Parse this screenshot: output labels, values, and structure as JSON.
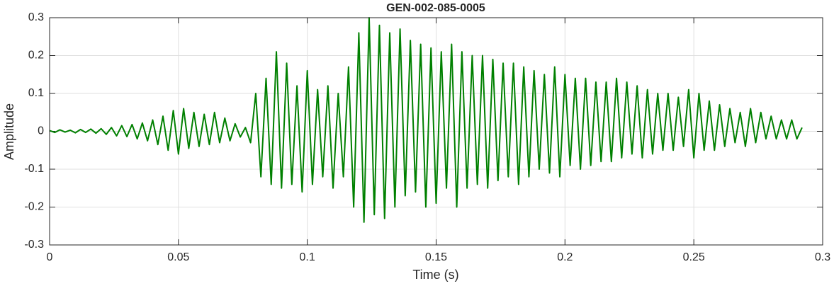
{
  "chart_data": {
    "type": "line",
    "title": "GEN-002-085-0005",
    "xlabel": "Time (s)",
    "ylabel": "Amplitude",
    "color": "#008000",
    "grid": true,
    "xlim": [
      0,
      0.3
    ],
    "xticks": [
      0,
      0.05,
      0.1,
      0.15,
      0.2,
      0.25,
      0.3
    ],
    "ylim": [
      -0.3,
      0.3
    ],
    "yticks": [
      -0.3,
      -0.2,
      -0.1,
      0,
      0.1,
      0.2,
      0.3
    ],
    "x": [
      0,
      0.002,
      0.004,
      0.006,
      0.008,
      0.01,
      0.012,
      0.014,
      0.016,
      0.018,
      0.02,
      0.022,
      0.024,
      0.026,
      0.028,
      0.03,
      0.032,
      0.034,
      0.036,
      0.038,
      0.04,
      0.042,
      0.044,
      0.046,
      0.048,
      0.05,
      0.052,
      0.054,
      0.056,
      0.058,
      0.06,
      0.062,
      0.064,
      0.066,
      0.068,
      0.07,
      0.072,
      0.074,
      0.076,
      0.078,
      0.08,
      0.082,
      0.084,
      0.086,
      0.088,
      0.09,
      0.092,
      0.094,
      0.096,
      0.098,
      0.1,
      0.102,
      0.104,
      0.106,
      0.108,
      0.11,
      0.112,
      0.114,
      0.116,
      0.118,
      0.12,
      0.122,
      0.124,
      0.126,
      0.128,
      0.13,
      0.132,
      0.134,
      0.136,
      0.138,
      0.14,
      0.142,
      0.144,
      0.146,
      0.148,
      0.15,
      0.152,
      0.154,
      0.156,
      0.158,
      0.16,
      0.162,
      0.164,
      0.166,
      0.168,
      0.17,
      0.172,
      0.174,
      0.176,
      0.178,
      0.18,
      0.182,
      0.184,
      0.186,
      0.188,
      0.19,
      0.192,
      0.194,
      0.196,
      0.198,
      0.2,
      0.202,
      0.204,
      0.206,
      0.208,
      0.21,
      0.212,
      0.214,
      0.216,
      0.218,
      0.22,
      0.222,
      0.224,
      0.226,
      0.228,
      0.23,
      0.232,
      0.234,
      0.236,
      0.238,
      0.24,
      0.242,
      0.244,
      0.246,
      0.248,
      0.25,
      0.252,
      0.254,
      0.256,
      0.258,
      0.26,
      0.262,
      0.264,
      0.266,
      0.268,
      0.27,
      0.272,
      0.274,
      0.276,
      0.278,
      0.28,
      0.282,
      0.284,
      0.286,
      0.288,
      0.29,
      0.292
    ],
    "values": [
      0.002,
      -0.003,
      0.004,
      -0.002,
      0.003,
      -0.004,
      0.005,
      -0.003,
      0.006,
      -0.005,
      0.007,
      -0.008,
      0.01,
      -0.012,
      0.015,
      -0.014,
      0.018,
      -0.02,
      0.022,
      -0.025,
      0.03,
      -0.035,
      0.04,
      -0.05,
      0.055,
      -0.06,
      0.06,
      -0.045,
      0.05,
      -0.04,
      0.045,
      -0.035,
      0.05,
      -0.03,
      0.035,
      -0.025,
      0.02,
      -0.015,
      0.01,
      -0.03,
      0.1,
      -0.12,
      0.14,
      -0.14,
      0.21,
      -0.15,
      0.18,
      -0.14,
      0.12,
      -0.16,
      0.16,
      -0.14,
      0.11,
      -0.12,
      0.12,
      -0.15,
      0.1,
      -0.12,
      0.17,
      -0.2,
      0.26,
      -0.24,
      0.3,
      -0.22,
      0.28,
      -0.23,
      0.26,
      -0.2,
      0.27,
      -0.17,
      0.24,
      -0.16,
      0.23,
      -0.2,
      0.22,
      -0.19,
      0.21,
      -0.15,
      0.23,
      -0.2,
      0.21,
      -0.15,
      0.2,
      -0.14,
      0.2,
      -0.15,
      0.19,
      -0.13,
      0.18,
      -0.12,
      0.18,
      -0.14,
      0.17,
      -0.12,
      0.16,
      -0.1,
      0.15,
      -0.11,
      0.17,
      -0.12,
      0.15,
      -0.09,
      0.14,
      -0.1,
      0.14,
      -0.09,
      0.13,
      -0.08,
      0.13,
      -0.08,
      0.14,
      -0.07,
      0.13,
      -0.06,
      0.12,
      -0.07,
      0.11,
      -0.06,
      0.1,
      -0.05,
      0.1,
      -0.05,
      0.09,
      -0.04,
      0.11,
      -0.07,
      0.1,
      -0.05,
      0.08,
      -0.05,
      0.07,
      -0.04,
      0.06,
      -0.03,
      0.05,
      -0.04,
      0.06,
      -0.03,
      0.05,
      -0.02,
      0.04,
      -0.02,
      0.03,
      -0.02,
      0.03,
      -0.02,
      0.01
    ]
  }
}
